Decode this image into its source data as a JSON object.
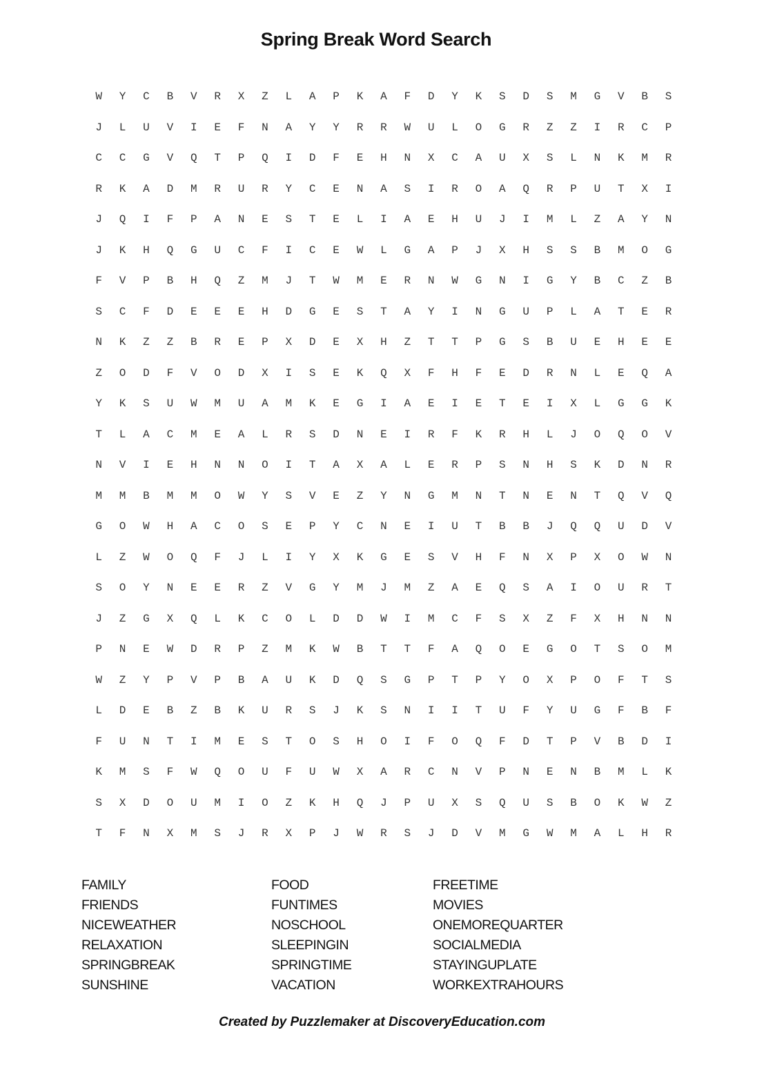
{
  "title": "Spring Break Word Search",
  "grid": [
    "WYCBVRXZLAPKAFDYKSDSMGVBS",
    "JLUVIEFNAYYRRWULOGRZZIRCP",
    "CCGVQTPQIDFEHNXCAUXSLNKMR",
    "RKADMRURYCENASIROAQRPUTXI",
    "JQIFPANESTELIAEHUJIMLZAYN",
    "JKHQGUCFICEWLGAPJXHSSBMOG",
    "FVPBHQZMJTWMERNWGNIGYBCZB",
    "SCFDEEEHDGESTAYINGUPLATER",
    "NKZZBREPXDEXHZTTPGSBUEHEE",
    "ZODFVODXISEKQXFHFEDRNLEQA",
    "YKSUWMUAMKEGIAEIETEIXLGGK",
    "TLACMEALRSDNEIRFKRHLJOQOV",
    "NVIEHNNOITAXALERPSNHSKDNR",
    "MMBMMOWYSVEZYNGMNTNENTQVQ",
    "GOWHACOSEPYCNEIUTBBJQQUDV",
    "LZWOQFJLIYXKGESVHFNXPXOWN",
    "SOYNEERZVGYMJMZAEQSAIOURT",
    "JZGXQLKCOLDDWIMCFSXZFXHNN",
    "PNEWDRPZMKWBTTFAQOEGOTSOM",
    "WZYPVPBAUKDQSGPTPYOXPOFTS",
    "LDEBZBKURSJKSNIITUFYUGFBF",
    "FUNTIMESTOSHOIFOQFDTPVBDI",
    "KMSFWQOUFUWXARCNVPNENBMLK",
    "SXDOUMIOZKHQJPUXSQUSBOKWZ",
    "TFNXMSJRXPJWRSJDVMGWMALHR"
  ],
  "words": [
    [
      "FAMILY",
      "FRIENDS",
      "NICEWEATHER",
      "RELAXATION",
      "SPRINGBREAK",
      "SUNSHINE"
    ],
    [
      "FOOD",
      "FUNTIMES",
      "NOSCHOOL",
      "SLEEPINGIN",
      "SPRINGTIME",
      "VACATION"
    ],
    [
      "FREETIME",
      "MOVIES",
      "ONEMOREQUARTER",
      "SOCIALMEDIA",
      "STAYINGUPLATE",
      "WORKEXTRAHOURS"
    ]
  ],
  "footer": "Created by Puzzlemaker at DiscoveryEducation.com"
}
